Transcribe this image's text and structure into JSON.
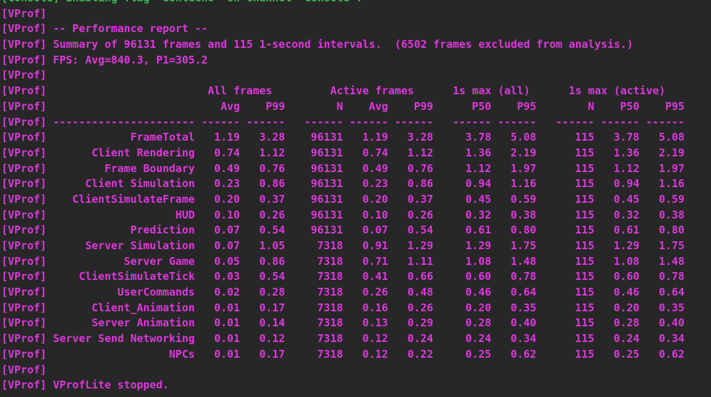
{
  "colors": {
    "background": "#272727",
    "vprof_text": "#dd38dd",
    "console_text": "#3cb44c"
  },
  "prefix": "[VProf]",
  "console_line": "[Console] Enabling flag 'dontecho' on channel 'Console'.",
  "report": {
    "title": "-- Performance report --",
    "summary": "Summary of 96131 frames and 115 1-second intervals.  (6502 frames excluded from analysis.)",
    "fps_line": "FPS: Avg=840.3, P1=305.2",
    "column_groups": [
      "All frames",
      "Active frames",
      "1s max (all)",
      "1s max (active)"
    ],
    "column_subheaders": [
      "Avg",
      "P99",
      "N",
      "Avg",
      "P99",
      "P50",
      "P95",
      "N",
      "P50",
      "P95"
    ],
    "divider": {
      "name_dashes": "----------------------",
      "field_dashes": "------"
    },
    "rows": [
      {
        "name": "FrameTotal",
        "vals": [
          "1.19",
          "3.28",
          "96131",
          "1.19",
          "3.28",
          "3.78",
          "5.08",
          "115",
          "3.78",
          "5.08"
        ]
      },
      {
        "name": "Client Rendering",
        "vals": [
          "0.74",
          "1.12",
          "96131",
          "0.74",
          "1.12",
          "1.36",
          "2.19",
          "115",
          "1.36",
          "2.19"
        ]
      },
      {
        "name": "Frame Boundary",
        "vals": [
          "0.49",
          "0.76",
          "96131",
          "0.49",
          "0.76",
          "1.12",
          "1.97",
          "115",
          "1.12",
          "1.97"
        ]
      },
      {
        "name": "Client Simulation",
        "vals": [
          "0.23",
          "0.86",
          "96131",
          "0.23",
          "0.86",
          "0.94",
          "1.16",
          "115",
          "0.94",
          "1.16"
        ]
      },
      {
        "name": "ClientSimulateFrame",
        "vals": [
          "0.20",
          "0.37",
          "96131",
          "0.20",
          "0.37",
          "0.45",
          "0.59",
          "115",
          "0.45",
          "0.59"
        ]
      },
      {
        "name": "HUD",
        "vals": [
          "0.10",
          "0.26",
          "96131",
          "0.10",
          "0.26",
          "0.32",
          "0.38",
          "115",
          "0.32",
          "0.38"
        ]
      },
      {
        "name": "Prediction",
        "vals": [
          "0.07",
          "0.54",
          "96131",
          "0.07",
          "0.54",
          "0.61",
          "0.80",
          "115",
          "0.61",
          "0.80"
        ]
      },
      {
        "name": "Server Simulation",
        "vals": [
          "0.07",
          "1.05",
          "7318",
          "0.91",
          "1.29",
          "1.29",
          "1.75",
          "115",
          "1.29",
          "1.75"
        ]
      },
      {
        "name": "Server Game",
        "vals": [
          "0.05",
          "0.86",
          "7318",
          "0.71",
          "1.11",
          "1.08",
          "1.48",
          "115",
          "1.08",
          "1.48"
        ]
      },
      {
        "name": "ClientSimulateTick",
        "vals": [
          "0.03",
          "0.54",
          "7318",
          "0.41",
          "0.66",
          "0.60",
          "0.78",
          "115",
          "0.60",
          "0.78"
        ]
      },
      {
        "name": "UserCommands",
        "vals": [
          "0.02",
          "0.28",
          "7318",
          "0.26",
          "0.48",
          "0.46",
          "0.64",
          "115",
          "0.46",
          "0.64"
        ]
      },
      {
        "name": "Client_Animation",
        "vals": [
          "0.01",
          "0.17",
          "7318",
          "0.16",
          "0.26",
          "0.20",
          "0.35",
          "115",
          "0.20",
          "0.35"
        ]
      },
      {
        "name": "Server Animation",
        "vals": [
          "0.01",
          "0.14",
          "7318",
          "0.13",
          "0.29",
          "0.28",
          "0.40",
          "115",
          "0.28",
          "0.40"
        ]
      },
      {
        "name": "Server Send Networking",
        "vals": [
          "0.01",
          "0.12",
          "7318",
          "0.12",
          "0.24",
          "0.24",
          "0.34",
          "115",
          "0.24",
          "0.34"
        ]
      },
      {
        "name": "NPCs",
        "vals": [
          "0.01",
          "0.17",
          "7318",
          "0.12",
          "0.22",
          "0.25",
          "0.62",
          "115",
          "0.25",
          "0.62"
        ]
      }
    ],
    "footer": "VProfLite stopped."
  }
}
